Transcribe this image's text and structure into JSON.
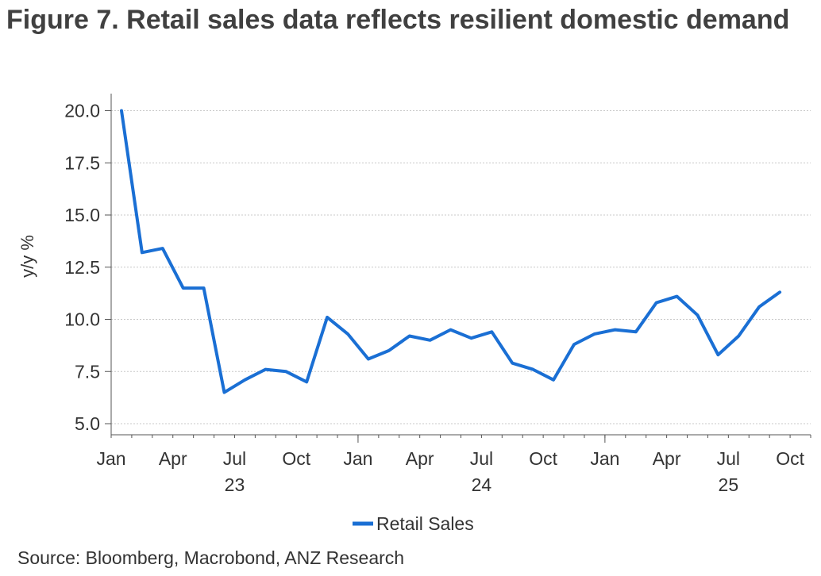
{
  "chart_data": {
    "type": "line",
    "title": "Figure 7. Retail sales data reflects resilient domestic demand",
    "ylabel": "y/y %",
    "xlabel": "",
    "ylim": [
      4.5,
      20.5
    ],
    "yticks": [
      5.0,
      7.5,
      10.0,
      12.5,
      15.0,
      17.5,
      20.0
    ],
    "ytick_labels": [
      "5.0",
      "7.5",
      "10.0",
      "12.5",
      "15.0",
      "17.5",
      "20.0"
    ],
    "x_month_labels": [
      {
        "month_index": 0,
        "label": "Jan",
        "year": ""
      },
      {
        "month_index": 3,
        "label": "Apr",
        "year": ""
      },
      {
        "month_index": 6,
        "label": "Jul",
        "year": "23"
      },
      {
        "month_index": 9,
        "label": "Oct",
        "year": ""
      },
      {
        "month_index": 12,
        "label": "Jan",
        "year": ""
      },
      {
        "month_index": 15,
        "label": "Apr",
        "year": ""
      },
      {
        "month_index": 18,
        "label": "Jul",
        "year": "24"
      },
      {
        "month_index": 21,
        "label": "Oct",
        "year": ""
      },
      {
        "month_index": 24,
        "label": "Jan",
        "year": ""
      },
      {
        "month_index": 27,
        "label": "Apr",
        "year": ""
      },
      {
        "month_index": 30,
        "label": "Jul",
        "year": "25"
      },
      {
        "month_index": 33,
        "label": "Oct",
        "year": ""
      }
    ],
    "grid": true,
    "legend_position": "bottom-center",
    "series": [
      {
        "name": "Retail Sales",
        "color": "#1a6fd4",
        "x": [
          0.5,
          1.5,
          2.5,
          3.5,
          4.5,
          5.5,
          6.5,
          7.5,
          8.5,
          9.5,
          10.5,
          11.5,
          12.5,
          13.5,
          14.5,
          15.5,
          16.5,
          17.5,
          18.5,
          19.5,
          20.5,
          21.5,
          22.5,
          23.5,
          24.5,
          25.5,
          26.5,
          27.5,
          28.5,
          29.5,
          30.5,
          31.5,
          32.5
        ],
        "values": [
          20.0,
          13.2,
          13.4,
          11.5,
          11.5,
          6.5,
          7.1,
          7.6,
          7.5,
          7.0,
          10.1,
          9.3,
          8.1,
          8.5,
          9.2,
          9.0,
          9.5,
          9.1,
          9.4,
          7.9,
          7.6,
          7.1,
          8.8,
          9.3,
          9.5,
          9.4,
          10.8,
          11.1,
          10.2,
          8.3,
          9.2,
          10.6,
          11.3
        ]
      }
    ]
  },
  "source": "Source: Bloomberg, Macrobond, ANZ Research"
}
